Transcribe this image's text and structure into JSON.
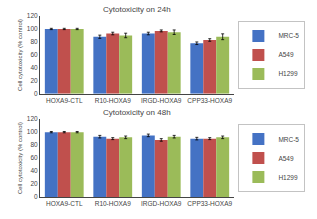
{
  "chart_data": [
    {
      "type": "bar",
      "title": "Cytotoxicity on 24h",
      "y_label": "Cell cytotoxicity (% control)",
      "categories": [
        "HOXA9-CTL",
        "R10-HOXA9",
        "IRGD-HOXA9",
        "CPP33-HOXA9"
      ],
      "series": [
        {
          "name": "MRC-5",
          "color": "#4472c4",
          "values": [
            100,
            88,
            93,
            78
          ],
          "errors": [
            1.0,
            2.5,
            2.0,
            2.0
          ]
        },
        {
          "name": "A549",
          "color": "#c0504d",
          "values": [
            100,
            93,
            97,
            83
          ],
          "errors": [
            1.0,
            2.0,
            1.5,
            2.0
          ]
        },
        {
          "name": "H1299",
          "color": "#9bbb59",
          "values": [
            100,
            90,
            95,
            88
          ],
          "errors": [
            1.0,
            3.5,
            3.5,
            4.5
          ]
        }
      ],
      "ylim": [
        0,
        120
      ],
      "yticks": [
        0,
        20,
        40,
        60,
        80,
        100,
        120
      ],
      "grid": false,
      "legend": "right"
    },
    {
      "type": "bar",
      "title": "Cytotoxicity on 48h",
      "y_label": "Cell cytotoxicity (% control)",
      "categories": [
        "HOXA9-CTL",
        "R10-HOXA9",
        "IRGD-HOXA9",
        "CPP33-HOXA9"
      ],
      "series": [
        {
          "name": "MRC-5",
          "color": "#4472c4",
          "values": [
            100,
            93,
            95,
            90
          ],
          "errors": [
            1.0,
            2.0,
            2.0,
            2.0
          ]
        },
        {
          "name": "A549",
          "color": "#c0504d",
          "values": [
            100,
            90,
            88,
            90
          ],
          "errors": [
            1.0,
            1.5,
            2.0,
            1.5
          ]
        },
        {
          "name": "H1299",
          "color": "#9bbb59",
          "values": [
            100,
            92,
            93,
            92
          ],
          "errors": [
            1.0,
            2.0,
            2.0,
            2.0
          ]
        }
      ],
      "ylim": [
        0,
        120
      ],
      "yticks": [
        0,
        20,
        40,
        60,
        80,
        100,
        120
      ],
      "grid": false,
      "legend": "right"
    }
  ]
}
